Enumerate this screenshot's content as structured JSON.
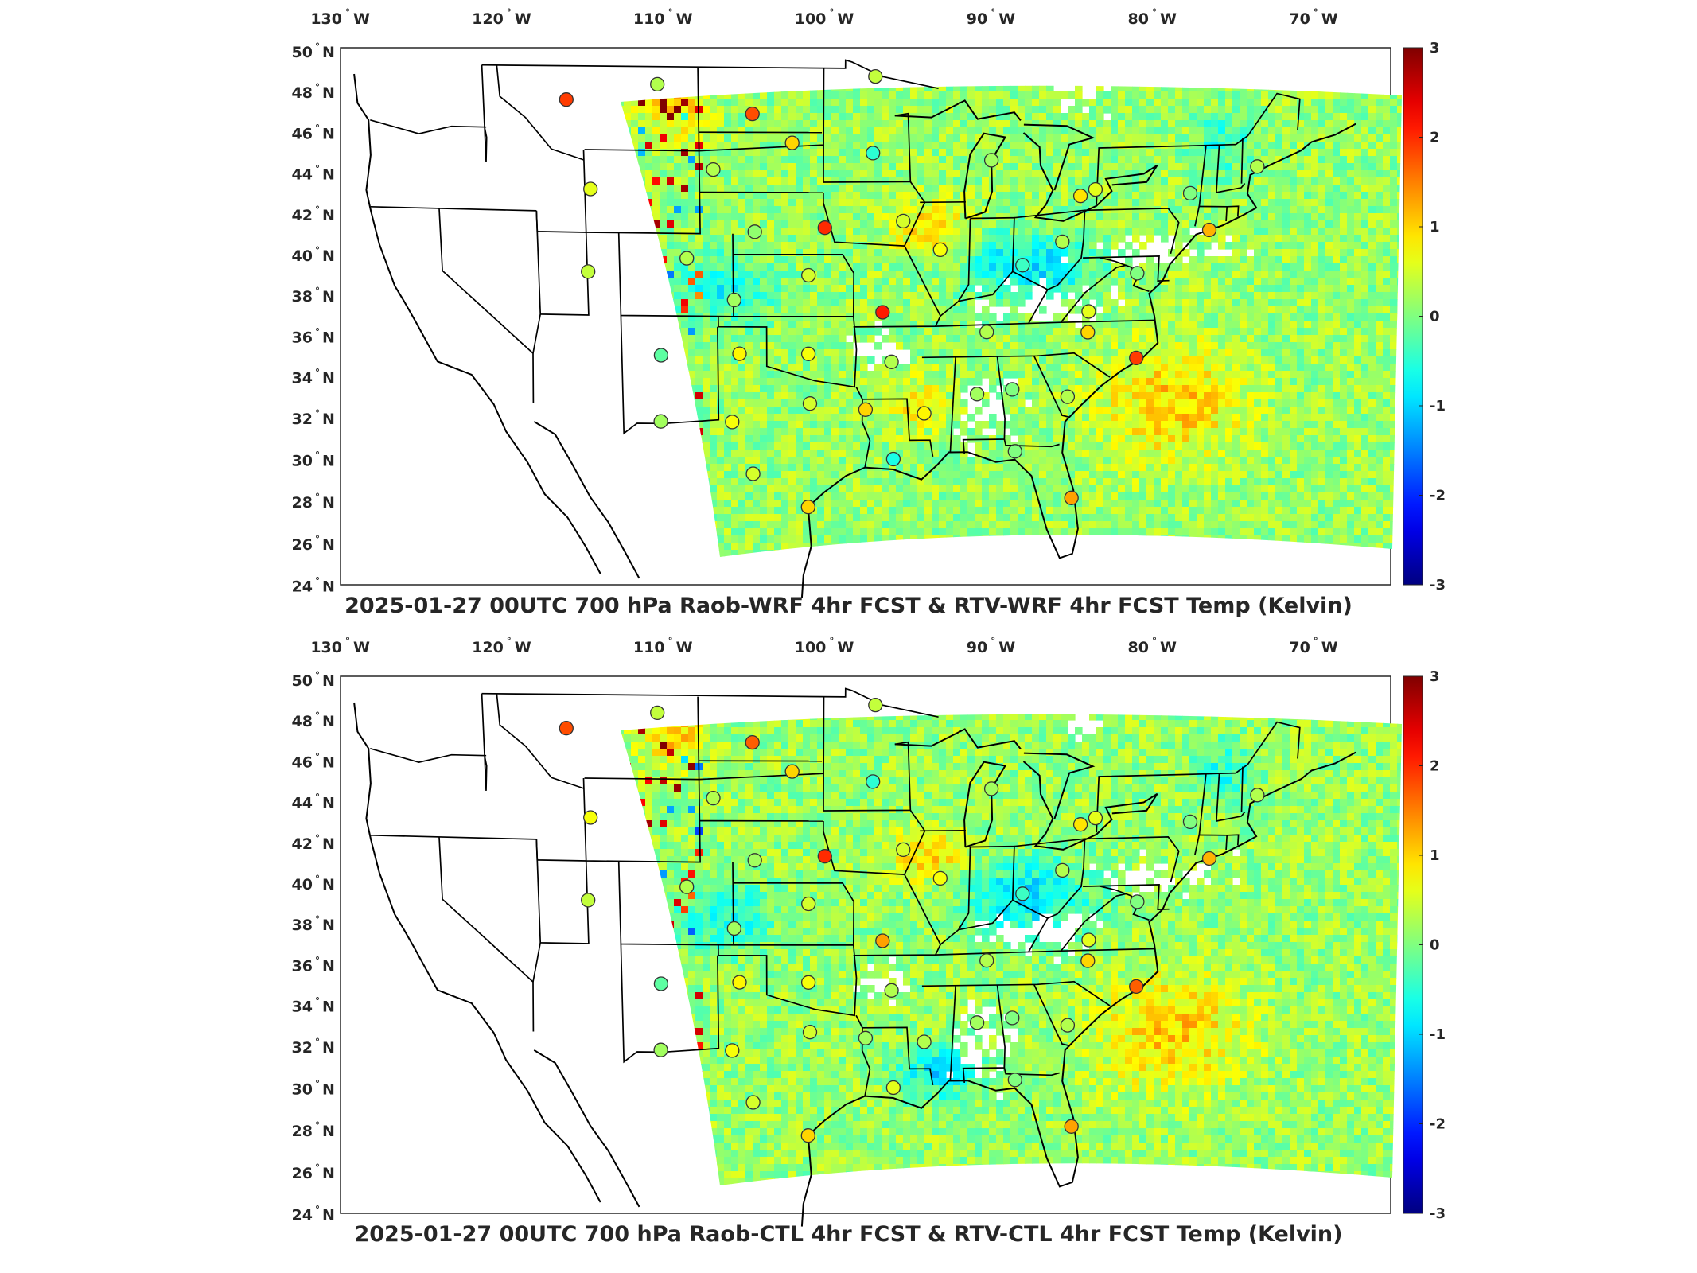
{
  "panels": [
    {
      "title": "2025-01-27 00UTC 700 hPa Raob-WRF 4hr FCST & RTV-WRF 4hr FCST Temp (Kelvin)",
      "lon_ticks": [
        "130",
        "120",
        "110",
        "100",
        "90",
        "80",
        "70"
      ],
      "lat_ticks": [
        "50",
        "48",
        "46",
        "44",
        "42",
        "40",
        "38",
        "36",
        "34",
        "32",
        "30",
        "28",
        "26",
        "24"
      ],
      "lon_hemisphere": "W",
      "lat_hemisphere": "N",
      "colorbar": {
        "min": -3,
        "max": 3,
        "ticks": [
          "3",
          "2",
          "1",
          "0",
          "-1",
          "-2",
          "-3"
        ],
        "colormap": "jet"
      },
      "stations": [
        {
          "lon": -112.0,
          "lat": 47.4,
          "value": 1.9
        },
        {
          "lon": -106.5,
          "lat": 48.2,
          "value": 0.3
        },
        {
          "lon": -100.8,
          "lat": 46.8,
          "value": 1.8
        },
        {
          "lon": -98.4,
          "lat": 45.4,
          "value": 1.0
        },
        {
          "lon": -93.5,
          "lat": 44.9,
          "value": -0.5
        },
        {
          "lon": -93.4,
          "lat": 48.6,
          "value": 0.4
        },
        {
          "lon": -103.2,
          "lat": 44.1,
          "value": 0.3
        },
        {
          "lon": -110.7,
          "lat": 43.1,
          "value": 0.6
        },
        {
          "lon": -100.7,
          "lat": 41.1,
          "value": 0.1
        },
        {
          "lon": -96.4,
          "lat": 41.3,
          "value": 2.0
        },
        {
          "lon": -91.6,
          "lat": 41.6,
          "value": 0.5
        },
        {
          "lon": -89.3,
          "lat": 40.2,
          "value": 0.7
        },
        {
          "lon": -86.3,
          "lat": 44.5,
          "value": 0.2
        },
        {
          "lon": -80.8,
          "lat": 42.7,
          "value": 0.9
        },
        {
          "lon": -79.9,
          "lat": 43.0,
          "value": 0.6
        },
        {
          "lon": -74.1,
          "lat": 42.7,
          "value": 0.0
        },
        {
          "lon": -70.1,
          "lat": 43.9,
          "value": 0.3
        },
        {
          "lon": -111.0,
          "lat": 39.1,
          "value": 0.4
        },
        {
          "lon": -104.9,
          "lat": 39.8,
          "value": 0.3
        },
        {
          "lon": -102.0,
          "lat": 37.8,
          "value": 0.2
        },
        {
          "lon": -97.4,
          "lat": 39.0,
          "value": 0.5
        },
        {
          "lon": -92.8,
          "lat": 37.2,
          "value": 2.1
        },
        {
          "lon": -84.2,
          "lat": 39.4,
          "value": -0.4
        },
        {
          "lon": -81.8,
          "lat": 40.5,
          "value": 0.3
        },
        {
          "lon": -77.1,
          "lat": 38.9,
          "value": 0.0
        },
        {
          "lon": -80.0,
          "lat": 37.1,
          "value": 0.6
        },
        {
          "lon": -86.3,
          "lat": 36.2,
          "value": 0.3
        },
        {
          "lon": -80.0,
          "lat": 36.1,
          "value": 1.0
        },
        {
          "lon": -72.8,
          "lat": 40.9,
          "value": 1.2
        },
        {
          "lon": -106.6,
          "lat": 35.1,
          "value": -0.2
        },
        {
          "lon": -101.7,
          "lat": 35.2,
          "value": 0.8
        },
        {
          "lon": -97.4,
          "lat": 35.2,
          "value": 0.7
        },
        {
          "lon": -92.2,
          "lat": 34.8,
          "value": 0.3
        },
        {
          "lon": -86.8,
          "lat": 33.2,
          "value": 0.2
        },
        {
          "lon": -84.6,
          "lat": 33.4,
          "value": 0.0
        },
        {
          "lon": -81.1,
          "lat": 33.0,
          "value": 0.3
        },
        {
          "lon": -76.9,
          "lat": 34.8,
          "value": 1.9
        },
        {
          "lon": -106.7,
          "lat": 31.9,
          "value": 0.2
        },
        {
          "lon": -102.2,
          "lat": 31.9,
          "value": 0.7
        },
        {
          "lon": -97.3,
          "lat": 32.8,
          "value": 0.5
        },
        {
          "lon": -93.8,
          "lat": 32.5,
          "value": 1.0
        },
        {
          "lon": -90.1,
          "lat": 32.3,
          "value": 0.8
        },
        {
          "lon": -100.9,
          "lat": 29.4,
          "value": 0.5
        },
        {
          "lon": -97.4,
          "lat": 27.8,
          "value": 1.0
        },
        {
          "lon": -92.0,
          "lat": 30.1,
          "value": -0.6
        },
        {
          "lon": -84.3,
          "lat": 30.4,
          "value": 0.0
        },
        {
          "lon": -80.6,
          "lat": 28.1,
          "value": 1.3
        }
      ]
    },
    {
      "title": "2025-01-27 00UTC 700 hPa Raob-CTL 4hr FCST & RTV-CTL 4hr FCST Temp (Kelvin)",
      "lon_ticks": [
        "130",
        "120",
        "110",
        "100",
        "90",
        "80",
        "70"
      ],
      "lat_ticks": [
        "50",
        "48",
        "46",
        "44",
        "42",
        "40",
        "38",
        "36",
        "34",
        "32",
        "30",
        "28",
        "26",
        "24"
      ],
      "lon_hemisphere": "W",
      "lat_hemisphere": "N",
      "colorbar": {
        "min": -3,
        "max": 3,
        "ticks": [
          "3",
          "2",
          "1",
          "0",
          "-1",
          "-2",
          "-3"
        ],
        "colormap": "jet"
      },
      "stations": [
        {
          "lon": -112.0,
          "lat": 47.4,
          "value": 1.8
        },
        {
          "lon": -106.5,
          "lat": 48.2,
          "value": 0.4
        },
        {
          "lon": -100.8,
          "lat": 46.8,
          "value": 1.7
        },
        {
          "lon": -98.4,
          "lat": 45.4,
          "value": 1.0
        },
        {
          "lon": -93.5,
          "lat": 44.9,
          "value": -0.5
        },
        {
          "lon": -93.4,
          "lat": 48.6,
          "value": 0.4
        },
        {
          "lon": -103.2,
          "lat": 44.1,
          "value": 0.3
        },
        {
          "lon": -110.7,
          "lat": 43.1,
          "value": 0.7
        },
        {
          "lon": -100.7,
          "lat": 41.1,
          "value": 0.2
        },
        {
          "lon": -96.4,
          "lat": 41.3,
          "value": 2.0
        },
        {
          "lon": -91.6,
          "lat": 41.6,
          "value": 0.5
        },
        {
          "lon": -89.3,
          "lat": 40.2,
          "value": 0.7
        },
        {
          "lon": -86.3,
          "lat": 44.5,
          "value": 0.2
        },
        {
          "lon": -80.8,
          "lat": 42.7,
          "value": 0.9
        },
        {
          "lon": -79.9,
          "lat": 43.0,
          "value": 0.6
        },
        {
          "lon": -74.1,
          "lat": 42.7,
          "value": 0.0
        },
        {
          "lon": -70.1,
          "lat": 43.9,
          "value": 0.3
        },
        {
          "lon": -111.0,
          "lat": 39.1,
          "value": 0.4
        },
        {
          "lon": -104.9,
          "lat": 39.8,
          "value": 0.3
        },
        {
          "lon": -102.0,
          "lat": 37.8,
          "value": 0.2
        },
        {
          "lon": -97.4,
          "lat": 39.0,
          "value": 0.5
        },
        {
          "lon": -92.8,
          "lat": 37.2,
          "value": 1.3
        },
        {
          "lon": -84.2,
          "lat": 39.4,
          "value": -0.4
        },
        {
          "lon": -81.8,
          "lat": 40.5,
          "value": 0.3
        },
        {
          "lon": -77.1,
          "lat": 38.9,
          "value": 0.0
        },
        {
          "lon": -80.0,
          "lat": 37.1,
          "value": 0.6
        },
        {
          "lon": -86.3,
          "lat": 36.2,
          "value": 0.3
        },
        {
          "lon": -80.0,
          "lat": 36.1,
          "value": 1.0
        },
        {
          "lon": -72.8,
          "lat": 40.9,
          "value": 1.2
        },
        {
          "lon": -106.6,
          "lat": 35.1,
          "value": -0.2
        },
        {
          "lon": -101.7,
          "lat": 35.2,
          "value": 0.8
        },
        {
          "lon": -97.4,
          "lat": 35.2,
          "value": 0.7
        },
        {
          "lon": -92.2,
          "lat": 34.8,
          "value": 0.3
        },
        {
          "lon": -86.8,
          "lat": 33.2,
          "value": 0.2
        },
        {
          "lon": -84.6,
          "lat": 33.4,
          "value": 0.0
        },
        {
          "lon": -81.1,
          "lat": 33.0,
          "value": 0.3
        },
        {
          "lon": -76.9,
          "lat": 34.8,
          "value": 1.7
        },
        {
          "lon": -106.7,
          "lat": 31.9,
          "value": 0.2
        },
        {
          "lon": -102.2,
          "lat": 31.9,
          "value": 0.7
        },
        {
          "lon": -97.3,
          "lat": 32.8,
          "value": 0.5
        },
        {
          "lon": -93.8,
          "lat": 32.5,
          "value": 0.2
        },
        {
          "lon": -90.1,
          "lat": 32.3,
          "value": 0.3
        },
        {
          "lon": -100.9,
          "lat": 29.4,
          "value": 0.5
        },
        {
          "lon": -97.4,
          "lat": 27.8,
          "value": 1.0
        },
        {
          "lon": -92.0,
          "lat": 30.1,
          "value": 0.6
        },
        {
          "lon": -84.3,
          "lat": 30.4,
          "value": 0.0
        },
        {
          "lon": -80.6,
          "lat": 28.1,
          "value": 1.3
        }
      ]
    }
  ]
}
